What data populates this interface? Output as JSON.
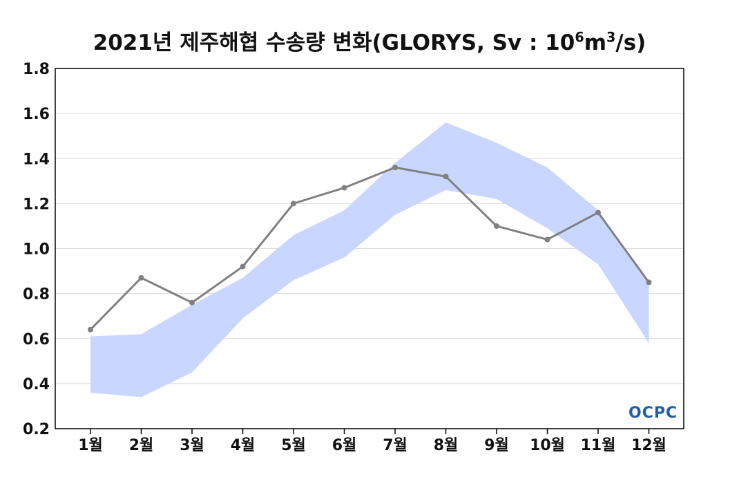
{
  "title": {
    "prefix": "2021년 제주해협 수송량 변화(GLORYS, Sv : 10",
    "sup1": "6",
    "mid": "m",
    "sup2": "3",
    "suffix": "/s)"
  },
  "logo_text": "OCPC",
  "chart_data": {
    "type": "line",
    "categories": [
      "1월",
      "2월",
      "3월",
      "4월",
      "5월",
      "6월",
      "7월",
      "8월",
      "9월",
      "10월",
      "11월",
      "12월"
    ],
    "ylim": [
      0.2,
      1.8
    ],
    "yticks": [
      "0.2",
      "0.4",
      "0.6",
      "0.8",
      "1.0",
      "1.2",
      "1.4",
      "1.6",
      "1.8"
    ],
    "grid": true,
    "series": [
      {
        "type": "line",
        "values": [
          0.64,
          0.87,
          0.76,
          0.92,
          1.2,
          1.27,
          1.36,
          1.32,
          1.1,
          1.04,
          1.16,
          0.85
        ],
        "color": "#808080"
      }
    ],
    "band": {
      "upper": [
        0.61,
        0.62,
        0.75,
        0.87,
        1.06,
        1.17,
        1.38,
        1.56,
        1.47,
        1.36,
        1.17,
        0.85
      ],
      "lower": [
        0.36,
        0.34,
        0.45,
        0.69,
        0.86,
        0.96,
        1.15,
        1.26,
        1.22,
        1.09,
        0.93,
        0.58
      ],
      "color": "#c9d6ff"
    }
  }
}
